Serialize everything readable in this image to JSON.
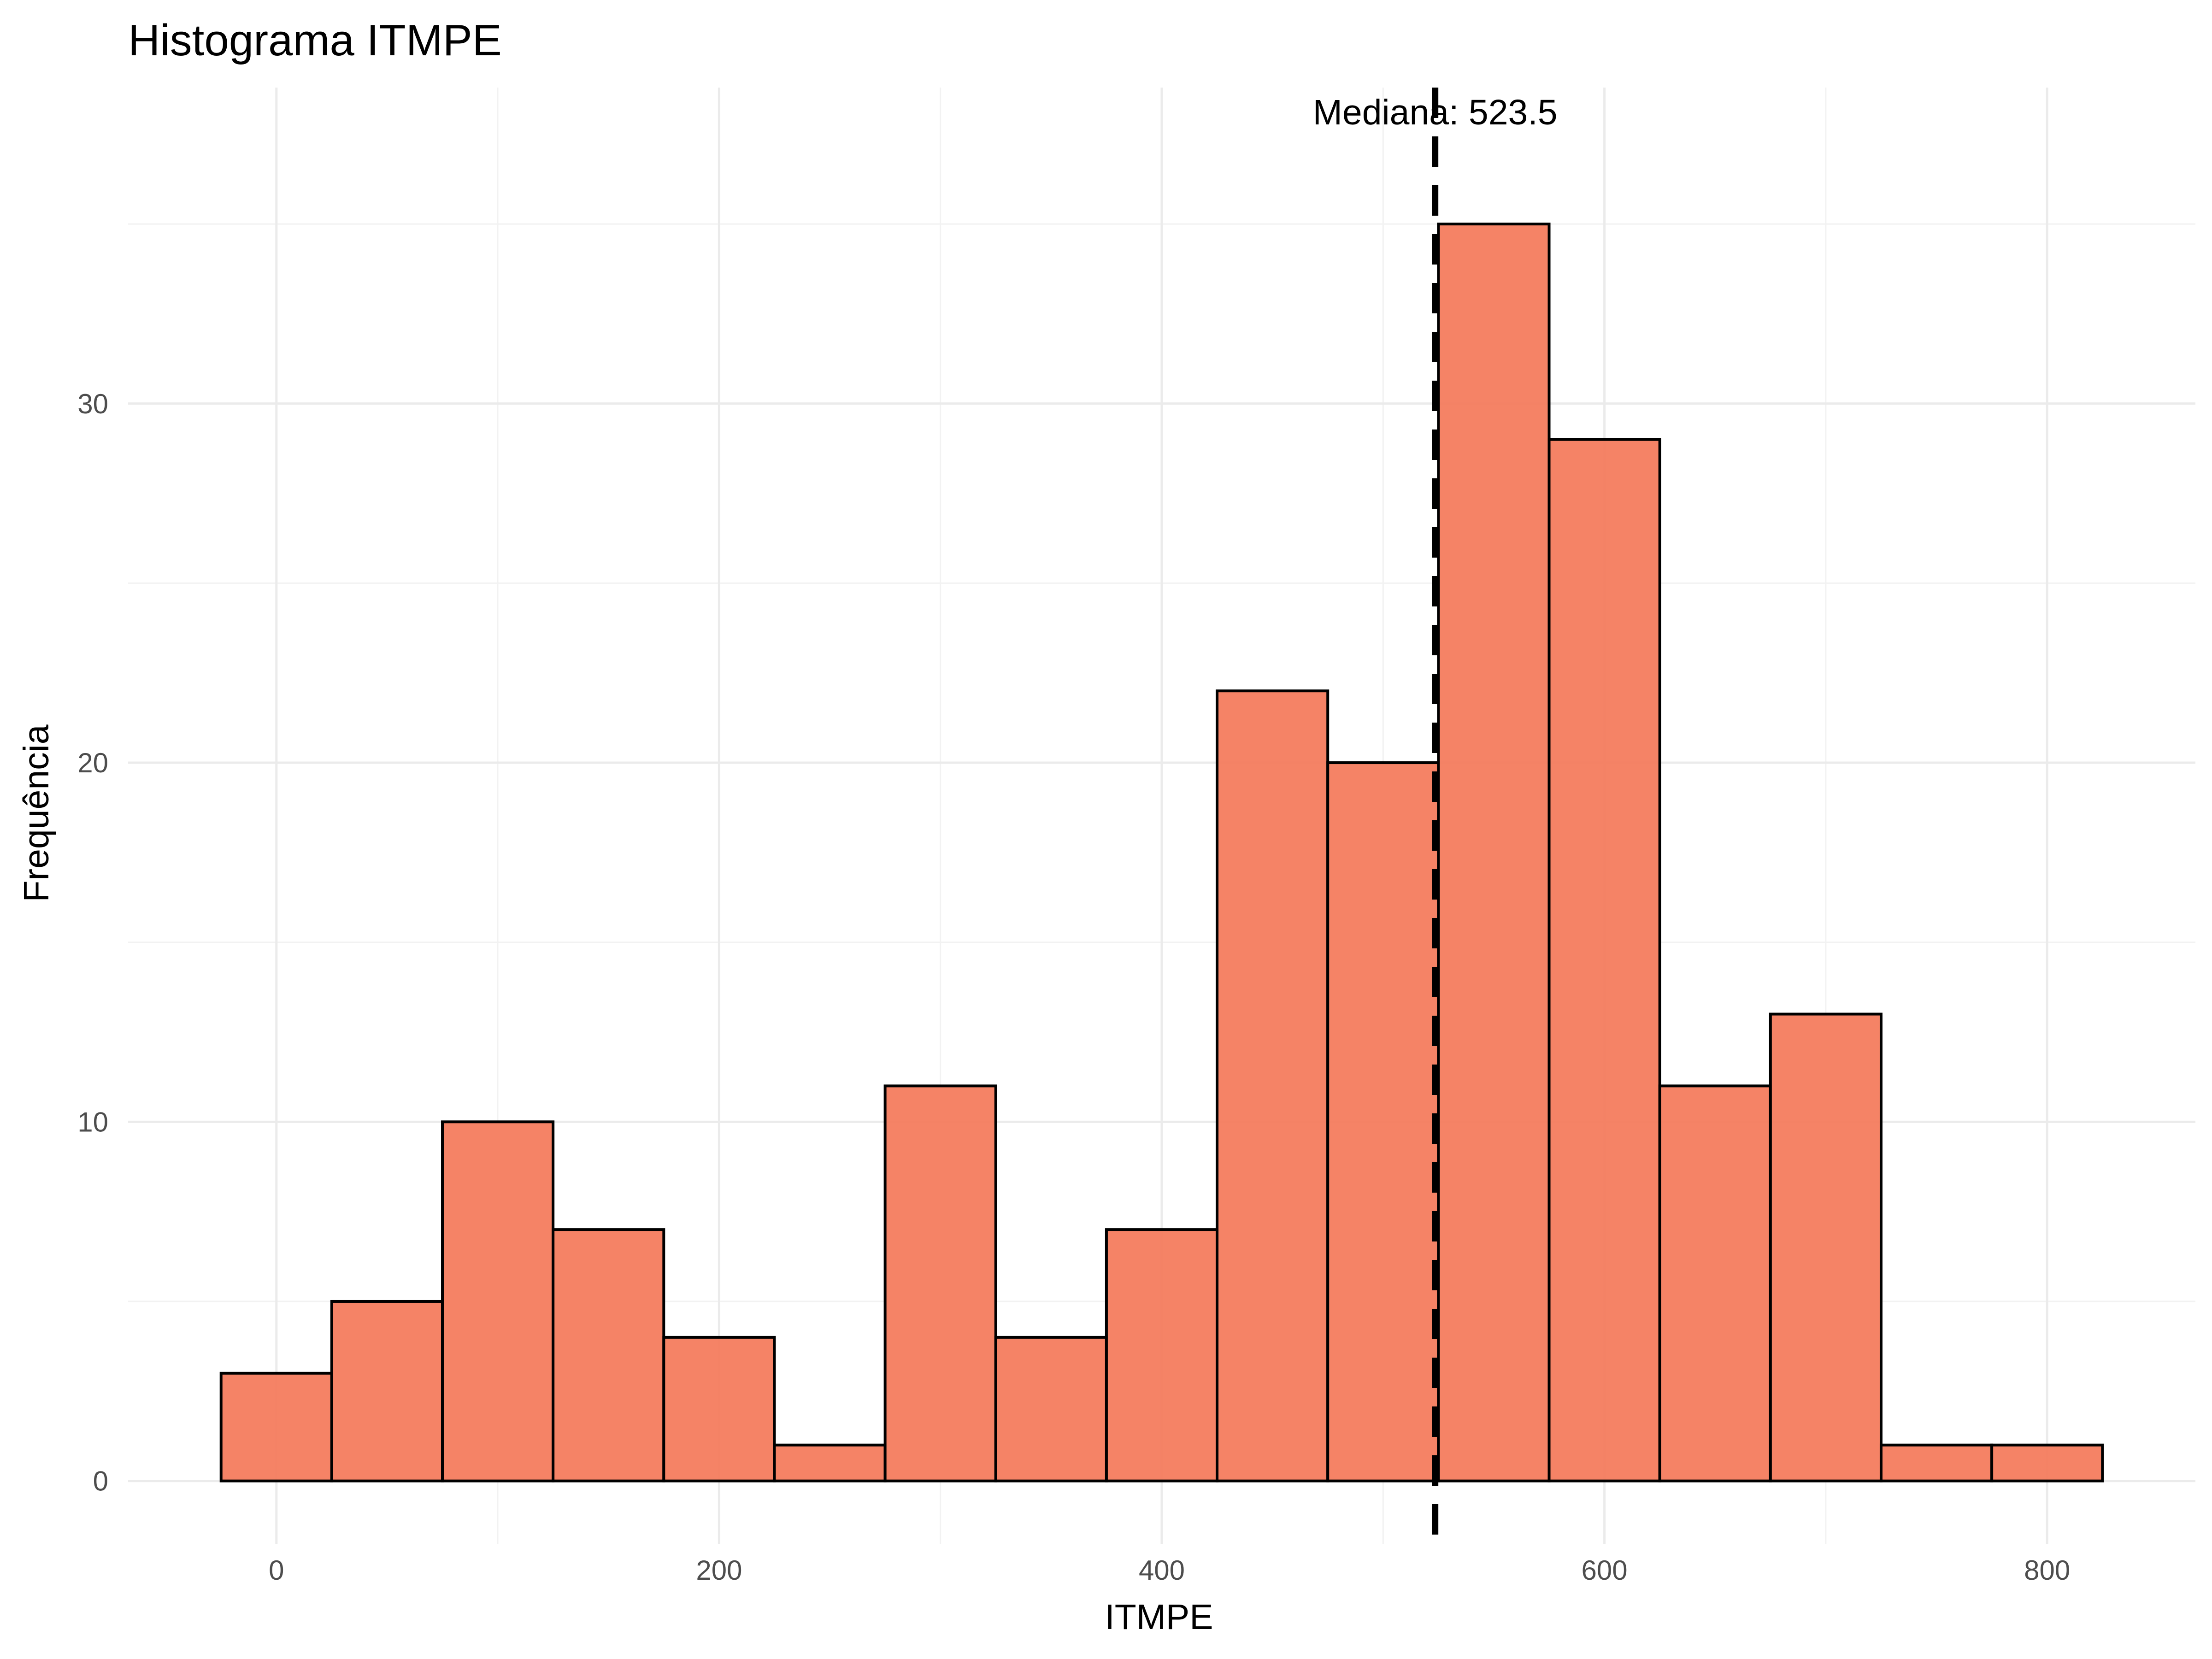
{
  "chart_data": {
    "type": "histogram",
    "title": "Histograma ITMPE",
    "xlabel": "ITMPE",
    "ylabel": "Frequência",
    "bin_width": 50,
    "bins": [
      {
        "start": -25,
        "end": 25,
        "count": 3
      },
      {
        "start": 25,
        "end": 75,
        "count": 5
      },
      {
        "start": 75,
        "end": 125,
        "count": 10
      },
      {
        "start": 125,
        "end": 175,
        "count": 7
      },
      {
        "start": 175,
        "end": 225,
        "count": 4
      },
      {
        "start": 225,
        "end": 275,
        "count": 1
      },
      {
        "start": 275,
        "end": 325,
        "count": 11
      },
      {
        "start": 325,
        "end": 375,
        "count": 4
      },
      {
        "start": 375,
        "end": 425,
        "count": 7
      },
      {
        "start": 425,
        "end": 475,
        "count": 22
      },
      {
        "start": 475,
        "end": 525,
        "count": 20
      },
      {
        "start": 525,
        "end": 575,
        "count": 35
      },
      {
        "start": 575,
        "end": 625,
        "count": 29
      },
      {
        "start": 625,
        "end": 675,
        "count": 11
      },
      {
        "start": 675,
        "end": 725,
        "count": 13
      },
      {
        "start": 725,
        "end": 775,
        "count": 1
      },
      {
        "start": 775,
        "end": 825,
        "count": 1
      }
    ],
    "median": 523.5,
    "median_label": "Mediana: 523.5",
    "xlim": [
      -67,
      867
    ],
    "ylim": [
      -1.75,
      38.8
    ],
    "x_ticks": [
      0,
      200,
      400,
      600,
      800
    ],
    "x_tick_labels": [
      "0",
      "200",
      "400",
      "600",
      "800"
    ],
    "y_ticks": [
      0,
      10,
      20,
      30
    ],
    "y_tick_labels": [
      "0",
      "10",
      "20",
      "30"
    ],
    "grid": true,
    "legend": "none",
    "bar_fill": "#F47C5E",
    "bar_outline": "#000000"
  }
}
